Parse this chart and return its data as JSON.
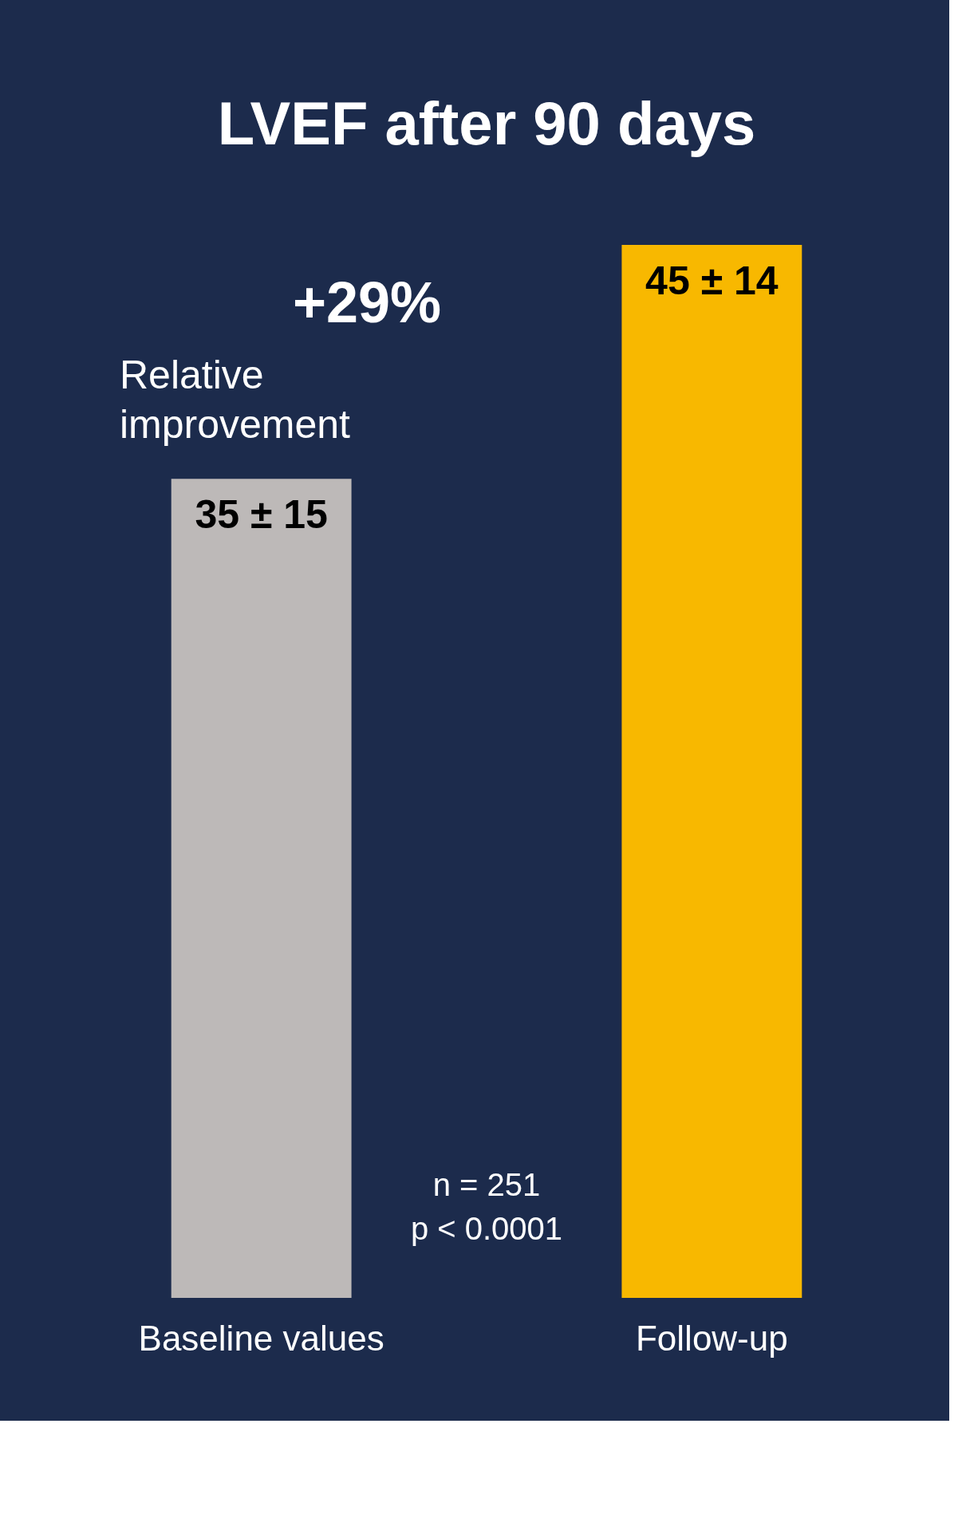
{
  "chart_data": {
    "type": "bar",
    "title": "LVEF after 90 days",
    "categories": [
      "Baseline values",
      "Follow-up"
    ],
    "values": [
      35,
      45
    ],
    "colors": [
      "#bdb9b8",
      "#f8b800"
    ],
    "value_labels": [
      "35 ± 15",
      "45 ± 14"
    ],
    "annotations": [
      "+29%",
      "Relative improvement",
      "n = 251",
      "p < 0.0001"
    ],
    "grid": false,
    "legend": false
  }
}
